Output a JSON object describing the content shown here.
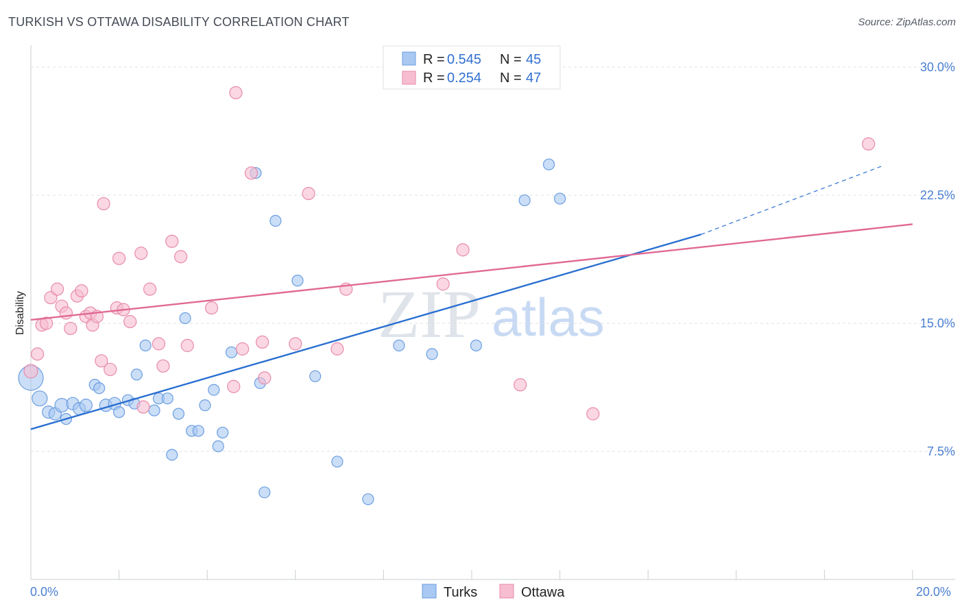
{
  "title": "TURKISH VS OTTAWA DISABILITY CORRELATION CHART",
  "source": "Source: ZipAtlas.com",
  "chart_data": {
    "type": "scatter",
    "ylabel": "Disability",
    "x_tick_labels": [
      "0.0%",
      "20.0%"
    ],
    "y_tick_labels": [
      "7.5%",
      "15.0%",
      "22.5%",
      "30.0%"
    ],
    "y_ticks": [
      7.5,
      15.0,
      22.5,
      30.0
    ],
    "xlim": [
      0,
      20
    ],
    "ylim": [
      0,
      30.8
    ],
    "grid": "horizontal dashed",
    "legend_position": "bottom",
    "stats_legend": [
      {
        "r_label": "R = ",
        "r": "0.545",
        "n_label": "N = ",
        "n": "45"
      },
      {
        "r_label": "R = ",
        "r": "0.254",
        "n_label": "N = ",
        "n": "47"
      }
    ],
    "watermark": [
      "ZIP",
      "atlas"
    ],
    "series": [
      {
        "name": "Turks",
        "color": "#a9c8f2",
        "stroke": "#6a9ee0",
        "line_color": "#2a6fd0",
        "trend": {
          "x0": 0,
          "y0": 8.8,
          "x1": 15.2,
          "y1": 20.2,
          "dashed_to_x": 19.3,
          "dashed_to_y": 24.2
        },
        "points": [
          [
            0.0,
            11.8,
            18
          ],
          [
            0.2,
            10.6,
            11
          ],
          [
            0.4,
            9.8,
            9
          ],
          [
            0.55,
            9.7,
            9
          ],
          [
            0.7,
            10.2,
            10
          ],
          [
            0.8,
            9.4,
            8
          ],
          [
            0.95,
            10.3,
            9
          ],
          [
            1.1,
            10.0,
            9
          ],
          [
            1.25,
            10.2,
            9
          ],
          [
            1.45,
            11.4,
            8
          ],
          [
            1.55,
            11.2,
            8
          ],
          [
            1.7,
            10.2,
            9
          ],
          [
            1.9,
            10.3,
            9
          ],
          [
            2.0,
            9.8,
            8
          ],
          [
            2.2,
            10.5,
            8
          ],
          [
            2.35,
            10.3,
            8
          ],
          [
            2.4,
            12.0,
            8
          ],
          [
            2.6,
            13.7,
            8
          ],
          [
            2.8,
            9.9,
            8
          ],
          [
            2.9,
            10.6,
            8
          ],
          [
            3.1,
            10.6,
            8
          ],
          [
            3.2,
            7.3,
            8
          ],
          [
            3.35,
            9.7,
            8
          ],
          [
            3.5,
            15.3,
            8
          ],
          [
            3.65,
            8.7,
            8
          ],
          [
            3.8,
            8.7,
            8
          ],
          [
            3.95,
            10.2,
            8
          ],
          [
            4.15,
            11.1,
            8
          ],
          [
            4.25,
            7.8,
            8
          ],
          [
            4.35,
            8.6,
            8
          ],
          [
            4.55,
            13.3,
            8
          ],
          [
            5.1,
            23.8,
            8
          ],
          [
            5.2,
            11.5,
            8
          ],
          [
            5.3,
            5.1,
            8
          ],
          [
            5.55,
            21.0,
            8
          ],
          [
            6.05,
            17.5,
            8
          ],
          [
            6.45,
            11.9,
            8
          ],
          [
            6.95,
            6.9,
            8
          ],
          [
            7.65,
            4.7,
            8
          ],
          [
            8.35,
            13.7,
            8
          ],
          [
            9.1,
            13.2,
            8
          ],
          [
            10.1,
            13.7,
            8
          ],
          [
            11.2,
            22.2,
            8
          ],
          [
            11.75,
            24.3,
            8
          ],
          [
            12.0,
            22.3,
            8
          ]
        ]
      },
      {
        "name": "Ottawa",
        "color": "#f7bdd0",
        "stroke": "#e88aa8",
        "line_color": "#e06894",
        "trend": {
          "x0": 0,
          "y0": 15.2,
          "x1": 20.0,
          "y1": 20.8
        },
        "points": [
          [
            0.0,
            12.2,
            10
          ],
          [
            0.15,
            13.2,
            9
          ],
          [
            0.25,
            14.9,
            9
          ],
          [
            0.35,
            15.0,
            9
          ],
          [
            0.45,
            16.5,
            9
          ],
          [
            0.6,
            17.0,
            9
          ],
          [
            0.7,
            16.0,
            9
          ],
          [
            0.8,
            15.6,
            9
          ],
          [
            0.9,
            14.7,
            9
          ],
          [
            1.05,
            16.6,
            9
          ],
          [
            1.15,
            16.9,
            9
          ],
          [
            1.25,
            15.4,
            9
          ],
          [
            1.35,
            15.6,
            9
          ],
          [
            1.4,
            14.9,
            9
          ],
          [
            1.5,
            15.4,
            9
          ],
          [
            1.6,
            12.8,
            9
          ],
          [
            1.65,
            22.0,
            9
          ],
          [
            1.8,
            12.3,
            9
          ],
          [
            1.95,
            15.9,
            9
          ],
          [
            2.0,
            18.8,
            9
          ],
          [
            2.1,
            15.8,
            9
          ],
          [
            2.25,
            15.1,
            9
          ],
          [
            2.5,
            19.1,
            9
          ],
          [
            2.55,
            10.1,
            9
          ],
          [
            2.7,
            17.0,
            9
          ],
          [
            2.9,
            13.8,
            9
          ],
          [
            3.0,
            12.5,
            9
          ],
          [
            3.2,
            19.8,
            9
          ],
          [
            3.4,
            18.9,
            9
          ],
          [
            3.55,
            13.7,
            9
          ],
          [
            4.1,
            15.9,
            9
          ],
          [
            4.6,
            11.3,
            9
          ],
          [
            4.65,
            28.5,
            9
          ],
          [
            4.8,
            13.5,
            9
          ],
          [
            5.0,
            23.8,
            9
          ],
          [
            5.25,
            13.9,
            9
          ],
          [
            5.3,
            11.8,
            9
          ],
          [
            6.0,
            13.8,
            9
          ],
          [
            6.3,
            22.6,
            9
          ],
          [
            6.95,
            13.5,
            9
          ],
          [
            7.15,
            17.0,
            9
          ],
          [
            8.35,
            29.8,
            9
          ],
          [
            9.35,
            17.3,
            9
          ],
          [
            9.8,
            19.3,
            9
          ],
          [
            11.1,
            11.4,
            9
          ],
          [
            12.75,
            9.7,
            9
          ],
          [
            19.0,
            25.5,
            9
          ]
        ]
      }
    ]
  }
}
